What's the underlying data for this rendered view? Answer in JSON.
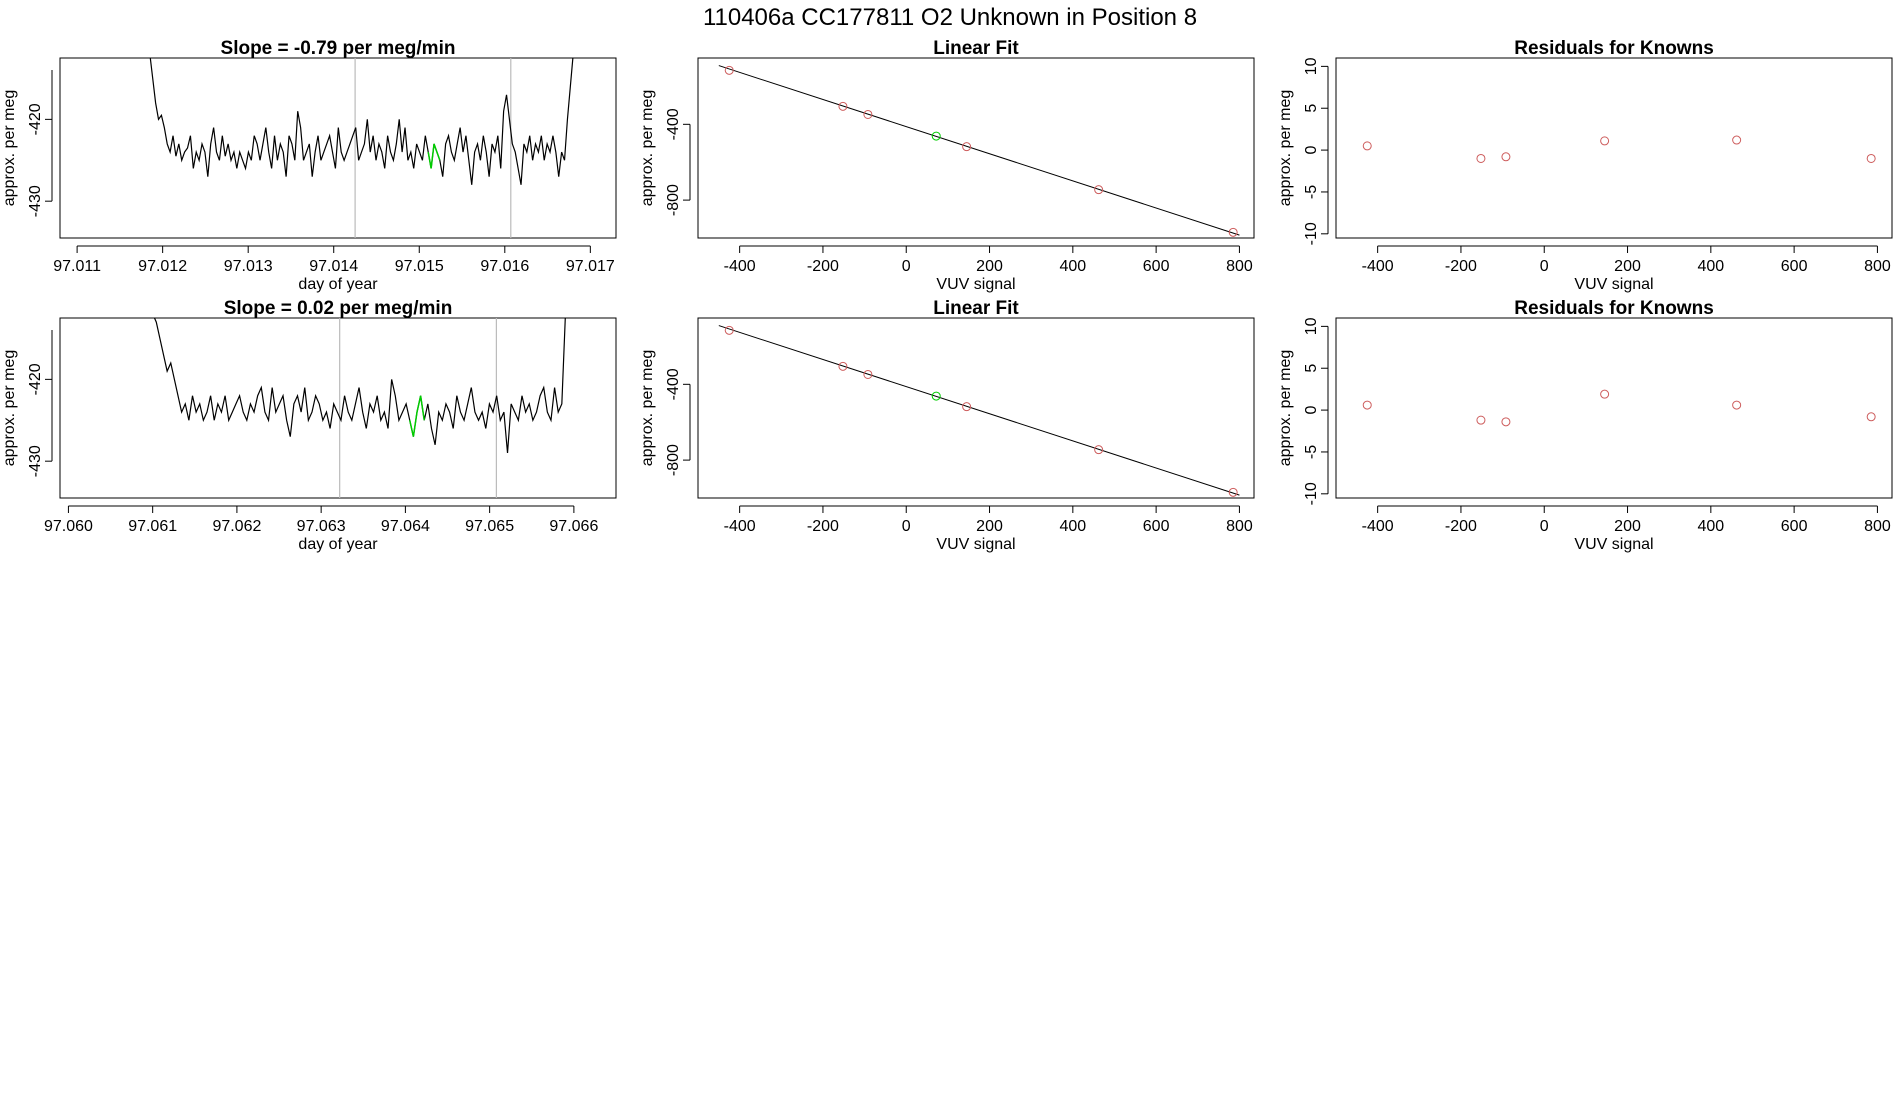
{
  "figure": {
    "title": "110406a      CC177811   O2 Unknown in Position  8"
  },
  "chart_data": [
    {
      "id": "ts1",
      "type": "line",
      "title": "Slope =  -0.79  per meg/min",
      "xlabel": "day of year",
      "ylabel": "approx. per meg",
      "xlim": [
        97.0108,
        97.0173
      ],
      "ylim": [
        -434.5,
        -412.5
      ],
      "xticks": [
        97.011,
        97.012,
        97.013,
        97.014,
        97.015,
        97.016,
        97.017
      ],
      "xtick_labels": [
        "97.011",
        "97.012",
        "97.013",
        "97.014",
        "97.015",
        "97.016",
        "97.017"
      ],
      "yticks": [
        -420,
        -430
      ],
      "ytick_labels": [
        "-420",
        "-430"
      ],
      "vlines": [
        97.01425,
        97.01607
      ],
      "line_color": "#000000",
      "vline_color": "#bbbbbb",
      "highlight_color": "#00cc00",
      "highlight_range": [
        97.0151,
        97.01525
      ],
      "series": {
        "x_start": 97.01185,
        "x_end": 97.0168,
        "values": [
          -412,
          -415,
          -418,
          -420,
          -419.5,
          -421,
          -423,
          -424,
          -422,
          -424.5,
          -423,
          -425,
          -424,
          -423.5,
          -422,
          -426,
          -424,
          -425,
          -423,
          -424,
          -427,
          -423,
          -421,
          -424,
          -425,
          -422,
          -424.5,
          -423,
          -425,
          -424,
          -426,
          -424,
          -425,
          -426,
          -424,
          -425,
          -422,
          -423,
          -425,
          -423,
          -421,
          -424,
          -426,
          -422,
          -425,
          -423,
          -424,
          -427,
          -422,
          -423,
          -425,
          -419,
          -421,
          -425,
          -424,
          -423,
          -427,
          -424,
          -422,
          -425,
          -424,
          -423,
          -422,
          -424,
          -426,
          -421,
          -424,
          -425,
          -424,
          -423,
          -422,
          -421,
          -425,
          -424,
          -423,
          -420,
          -424,
          -422,
          -425,
          -423,
          -424,
          -426,
          -422,
          -424,
          -425,
          -423,
          -420,
          -424,
          -421,
          -425,
          -424,
          -426,
          -423,
          -424,
          -425,
          -422,
          -424,
          -426,
          -423,
          -424,
          -425,
          -427,
          -423,
          -422,
          -424,
          -425,
          -423,
          -421,
          -424,
          -422,
          -425,
          -428,
          -424,
          -423,
          -425,
          -422,
          -424,
          -427,
          -423,
          -424,
          -422,
          -426,
          -419,
          -417,
          -420,
          -423,
          -424,
          -426,
          -428,
          -423,
          -424,
          -422,
          -425,
          -423,
          -424,
          -422,
          -425,
          -423,
          -424,
          -422,
          -424,
          -427,
          -424,
          -425,
          -420,
          -416,
          -412
        ]
      }
    },
    {
      "id": "fit1",
      "type": "scatter",
      "title": "Linear Fit",
      "xlabel": "VUV signal",
      "ylabel": "approx. per meg",
      "xlim": [
        -500,
        835
      ],
      "ylim": [
        -1000,
        -50
      ],
      "xticks": [
        -400,
        -200,
        0,
        200,
        400,
        600,
        800
      ],
      "xtick_labels": [
        "-400",
        "-200",
        "0",
        "200",
        "400",
        "600",
        "800"
      ],
      "yticks": [
        -400,
        -800
      ],
      "ytick_labels": [
        "-400",
        "-800"
      ],
      "fit_line": {
        "x": [
          -450,
          800
        ],
        "y": [
          -90,
          -985
        ]
      },
      "points": [
        {
          "x": -425,
          "y": -115,
          "color": "#cd5c5c"
        },
        {
          "x": -152,
          "y": -305,
          "color": "#cd5c5c"
        },
        {
          "x": -92,
          "y": -348,
          "color": "#cd5c5c"
        },
        {
          "x": 72,
          "y": -462,
          "color": "#00cc00"
        },
        {
          "x": 145,
          "y": -518,
          "color": "#cd5c5c"
        },
        {
          "x": 462,
          "y": -745,
          "color": "#cd5c5c"
        },
        {
          "x": 785,
          "y": -970,
          "color": "#cd5c5c"
        }
      ]
    },
    {
      "id": "res1",
      "type": "scatter",
      "title": "Residuals for Knowns",
      "xlabel": "VUV signal",
      "ylabel": "approx. per meg",
      "xlim": [
        -500,
        835
      ],
      "ylim": [
        -10.5,
        11
      ],
      "xticks": [
        -400,
        -200,
        0,
        200,
        400,
        600,
        800
      ],
      "xtick_labels": [
        "-400",
        "-200",
        "0",
        "200",
        "400",
        "600",
        "800"
      ],
      "yticks": [
        10,
        5,
        0,
        -5,
        -10
      ],
      "ytick_labels": [
        "10",
        "5",
        "0",
        "-5",
        "-10"
      ],
      "points": [
        {
          "x": -425,
          "y": 0.5,
          "color": "#cd5c5c"
        },
        {
          "x": -152,
          "y": -1.0,
          "color": "#cd5c5c"
        },
        {
          "x": -92,
          "y": -0.8,
          "color": "#cd5c5c"
        },
        {
          "x": 145,
          "y": 1.1,
          "color": "#cd5c5c"
        },
        {
          "x": 462,
          "y": 1.2,
          "color": "#cd5c5c"
        },
        {
          "x": 785,
          "y": -1.0,
          "color": "#cd5c5c"
        }
      ]
    },
    {
      "id": "ts2",
      "type": "line",
      "title": "Slope =  0.02  per meg/min",
      "xlabel": "day of year",
      "ylabel": "approx. per meg",
      "xlim": [
        97.0599,
        97.0665
      ],
      "ylim": [
        -434.5,
        -412.5
      ],
      "xticks": [
        97.06,
        97.061,
        97.062,
        97.063,
        97.064,
        97.065,
        97.066
      ],
      "xtick_labels": [
        "97.060",
        "97.061",
        "97.062",
        "97.063",
        "97.064",
        "97.065",
        "97.066"
      ],
      "yticks": [
        -420,
        -430
      ],
      "ytick_labels": [
        "-420",
        "-430"
      ],
      "vlines": [
        97.06322,
        97.06508
      ],
      "line_color": "#000000",
      "vline_color": "#bbbbbb",
      "highlight_color": "#00cc00",
      "highlight_range": [
        97.06405,
        97.06425
      ],
      "series": {
        "x_start": 97.061,
        "x_end": 97.0659,
        "values": [
          -412,
          -413,
          -415,
          -417,
          -419,
          -418,
          -420,
          -422,
          -424,
          -423,
          -425,
          -422,
          -424,
          -423,
          -425,
          -424,
          -422,
          -425,
          -423,
          -424,
          -422,
          -425,
          -424,
          -423,
          -422,
          -424,
          -425,
          -423,
          -424,
          -422,
          -421,
          -424,
          -425,
          -421,
          -424,
          -423,
          -422,
          -425,
          -427,
          -423,
          -422,
          -424,
          -421,
          -425,
          -424,
          -422,
          -423,
          -425,
          -424,
          -426,
          -423,
          -424,
          -425,
          -422,
          -424,
          -425,
          -423,
          -421,
          -424,
          -426,
          -423,
          -424,
          -422,
          -425,
          -424,
          -426,
          -420,
          -422,
          -425,
          -424,
          -423,
          -425,
          -427,
          -424,
          -422,
          -425,
          -423,
          -426,
          -428,
          -424,
          -425,
          -423,
          -424,
          -426,
          -422,
          -424,
          -425,
          -423,
          -421,
          -424,
          -425,
          -424,
          -426,
          -423,
          -424,
          -422,
          -425,
          -424,
          -429,
          -423,
          -424,
          -425,
          -422,
          -424,
          -423,
          -425,
          -424,
          -422,
          -421,
          -424,
          -425,
          -421,
          -424,
          -423,
          -412
        ]
      }
    },
    {
      "id": "fit2",
      "type": "scatter",
      "title": "Linear Fit",
      "xlabel": "VUV signal",
      "ylabel": "approx. per meg",
      "xlim": [
        -500,
        835
      ],
      "ylim": [
        -1000,
        -50
      ],
      "xticks": [
        -400,
        -200,
        0,
        200,
        400,
        600,
        800
      ],
      "xtick_labels": [
        "-400",
        "-200",
        "0",
        "200",
        "400",
        "600",
        "800"
      ],
      "yticks": [
        -400,
        -800
      ],
      "ytick_labels": [
        "-400",
        "-800"
      ],
      "fit_line": {
        "x": [
          -450,
          800
        ],
        "y": [
          -90,
          -985
        ]
      },
      "points": [
        {
          "x": -425,
          "y": -115,
          "color": "#cd5c5c"
        },
        {
          "x": -152,
          "y": -305,
          "color": "#cd5c5c"
        },
        {
          "x": -92,
          "y": -348,
          "color": "#cd5c5c"
        },
        {
          "x": 72,
          "y": -462,
          "color": "#00cc00"
        },
        {
          "x": 145,
          "y": -518,
          "color": "#cd5c5c"
        },
        {
          "x": 462,
          "y": -745,
          "color": "#cd5c5c"
        },
        {
          "x": 785,
          "y": -970,
          "color": "#cd5c5c"
        }
      ]
    },
    {
      "id": "res2",
      "type": "scatter",
      "title": "Residuals for Knowns",
      "xlabel": "VUV signal",
      "ylabel": "approx. per meg",
      "xlim": [
        -500,
        835
      ],
      "ylim": [
        -10.5,
        11
      ],
      "xticks": [
        -400,
        -200,
        0,
        200,
        400,
        600,
        800
      ],
      "xtick_labels": [
        "-400",
        "-200",
        "0",
        "200",
        "400",
        "600",
        "800"
      ],
      "yticks": [
        10,
        5,
        0,
        -5,
        -10
      ],
      "ytick_labels": [
        "10",
        "5",
        "0",
        "-5",
        "-10"
      ],
      "points": [
        {
          "x": -425,
          "y": 0.6,
          "color": "#cd5c5c"
        },
        {
          "x": -152,
          "y": -1.2,
          "color": "#cd5c5c"
        },
        {
          "x": -92,
          "y": -1.4,
          "color": "#cd5c5c"
        },
        {
          "x": 145,
          "y": 1.9,
          "color": "#cd5c5c"
        },
        {
          "x": 462,
          "y": 0.6,
          "color": "#cd5c5c"
        },
        {
          "x": 785,
          "y": -0.8,
          "color": "#cd5c5c"
        }
      ]
    }
  ]
}
